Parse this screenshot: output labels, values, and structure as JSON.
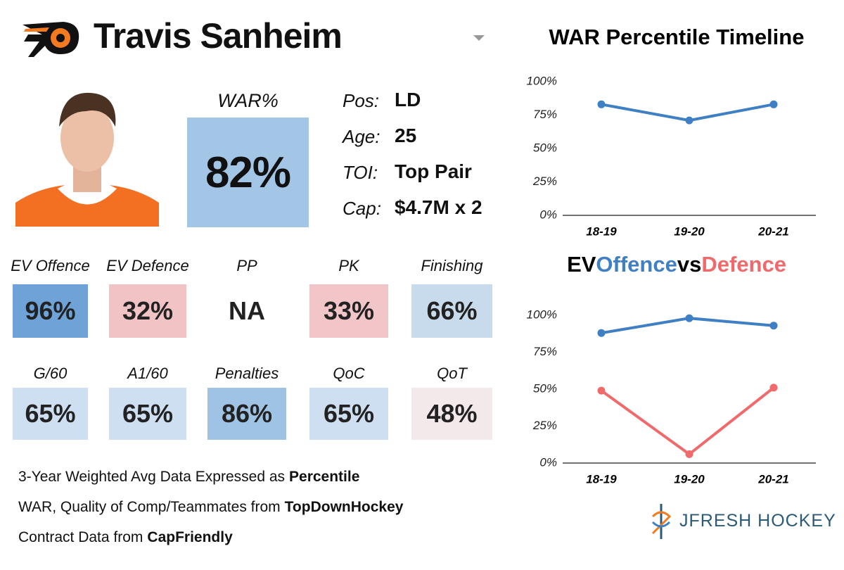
{
  "player": {
    "name": "Travis Sanheim",
    "war_label": "WAR%",
    "war_value": "82%",
    "bio": [
      {
        "key": "Pos:",
        "value": "LD"
      },
      {
        "key": "Age:",
        "value": "25"
      },
      {
        "key": "TOI:",
        "value": "Top Pair"
      },
      {
        "key": "Cap:",
        "value": "$4.7M x 2"
      }
    ]
  },
  "tiles": [
    {
      "label": "EV Offence",
      "value": "96%",
      "color": "#6fa3d8"
    },
    {
      "label": "EV Defence",
      "value": "32%",
      "color": "#f2c3c5"
    },
    {
      "label": "PP",
      "value": "NA"
    },
    {
      "label": "PK",
      "value": "33%",
      "color": "#f2c5c8"
    },
    {
      "label": "Finishing",
      "value": "66%",
      "color": "#c8dbec"
    },
    {
      "label": "G/60",
      "value": "65%",
      "color": "#cddff0"
    },
    {
      "label": "A1/60",
      "value": "65%",
      "color": "#cddff0"
    },
    {
      "label": "Penalties",
      "value": "86%",
      "color": "#9ec3e5"
    },
    {
      "label": "QoC",
      "value": "65%",
      "color": "#cddff0"
    },
    {
      "label": "QoT",
      "value": "48%",
      "color": "#f3e9eb"
    }
  ],
  "footer": [
    {
      "text": "3-Year Weighted Avg Data Expressed as",
      "bold": "Percentile"
    },
    {
      "text": "WAR, Quality of Comp/Teammates from",
      "bold": "TopDownHockey"
    },
    {
      "text": "Contract Data from",
      "bold": "CapFriendly"
    }
  ],
  "brand": "JFRESH HOCKEY",
  "chart_data": [
    {
      "type": "line",
      "title": "WAR Percentile Timeline",
      "categories": [
        "18-19",
        "19-20",
        "20-21"
      ],
      "values": [
        83,
        71,
        83
      ],
      "color": "#3f7fc4",
      "ylim": [
        0,
        100
      ],
      "yticks": [
        {
          "value": 0,
          "label": "0%"
        },
        {
          "value": 25,
          "label": "25%"
        },
        {
          "value": 50,
          "label": "50%"
        },
        {
          "value": 75,
          "label": "75%"
        },
        {
          "value": 100,
          "label": "100%"
        }
      ],
      "grid": false
    },
    {
      "type": "line",
      "title_prefix": "EV",
      "title_joiner": "vs",
      "categories": [
        "18-19",
        "19-20",
        "20-21"
      ],
      "series": [
        {
          "name": "Offence",
          "color": "#3f7fc4",
          "values": [
            88,
            98,
            93
          ]
        },
        {
          "name": "Defence",
          "color": "#f06a6c",
          "values": [
            49,
            6,
            51
          ]
        }
      ],
      "ylim": [
        0,
        100
      ],
      "yticks": [
        {
          "value": 0,
          "label": "0%"
        },
        {
          "value": 25,
          "label": "25%"
        },
        {
          "value": 50,
          "label": "50%"
        },
        {
          "value": 75,
          "label": "75%"
        },
        {
          "value": 100,
          "label": "100%"
        }
      ],
      "grid": false
    }
  ]
}
